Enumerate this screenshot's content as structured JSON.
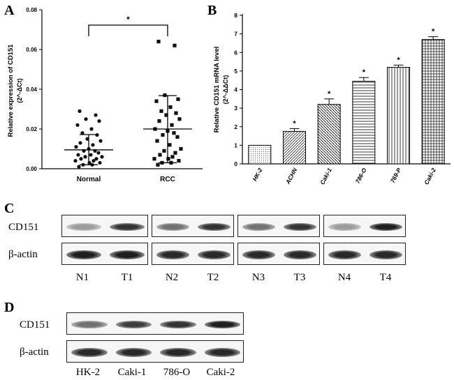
{
  "panel_a": {
    "letter": "A",
    "significance": "*",
    "chart_data": {
      "type": "scatter",
      "ylabel": "Relative expression of CD151",
      "ylabel_formula": "(2^-ΔCt)",
      "categories": [
        "Normal",
        "RCC"
      ],
      "ylim": [
        0,
        0.08
      ],
      "yticks": [
        "0.00",
        "0.02",
        "0.04",
        "0.06",
        "0.08"
      ],
      "series": [
        {
          "values": [
            0.029,
            0.027,
            0.025,
            0.024,
            0.022,
            0.02,
            0.018,
            0.017,
            0.015,
            0.014,
            0.013,
            0.012,
            0.011,
            0.01,
            0.009,
            0.009,
            0.008,
            0.007,
            0.007,
            0.006,
            0.006,
            0.005,
            0.005,
            0.004,
            0.004,
            0.003,
            0.003,
            0.002,
            0.002,
            0.001
          ],
          "mean": 0.0095,
          "sd_upper": 0.0172,
          "sd_lower": 0.002
        },
        {
          "values": [
            0.064,
            0.062,
            0.037,
            0.035,
            0.034,
            0.031,
            0.029,
            0.028,
            0.027,
            0.025,
            0.024,
            0.022,
            0.02,
            0.019,
            0.018,
            0.017,
            0.016,
            0.014,
            0.012,
            0.01,
            0.009,
            0.008,
            0.007,
            0.006,
            0.005,
            0.005,
            0.004,
            0.003,
            0.003,
            0.002
          ],
          "mean": 0.02,
          "sd_upper": 0.0368,
          "sd_lower": 0.003
        }
      ]
    }
  },
  "panel_b": {
    "letter": "B",
    "chart_data": {
      "type": "bar",
      "ylabel": "Relative CD151 mRNA level",
      "ylabel_formula": "(2^-ΔΔCt)",
      "categories": [
        "HK-2",
        "ACHN",
        "Caki-1",
        "786-O",
        "769-P",
        "Caki-2"
      ],
      "values": [
        1.0,
        1.75,
        3.2,
        4.45,
        5.2,
        6.7
      ],
      "errors": [
        0,
        0.15,
        0.3,
        0.2,
        0.12,
        0.15
      ],
      "significance": [
        "",
        "*",
        "*",
        "*",
        "*",
        "*"
      ],
      "ylim": [
        0,
        8
      ],
      "yticks": [
        "0",
        "1",
        "2",
        "3",
        "4",
        "5",
        "6",
        "7",
        "8"
      ]
    }
  },
  "panel_c": {
    "letter": "C",
    "rows": [
      "CD151",
      "β-actin"
    ],
    "lanes": [
      "N1",
      "T1",
      "N2",
      "T2",
      "N3",
      "T3",
      "N4",
      "T4"
    ],
    "cd151_intensity": [
      0.35,
      0.85,
      0.55,
      0.85,
      0.55,
      0.85,
      0.35,
      0.95
    ],
    "actin_intensity": [
      0.95,
      0.95,
      0.9,
      0.9,
      0.9,
      0.9,
      0.9,
      0.9
    ]
  },
  "panel_d": {
    "letter": "D",
    "rows": [
      "CD151",
      "β-actin"
    ],
    "lanes": [
      "HK-2",
      "Caki-1",
      "786-O",
      "Caki-2"
    ],
    "cd151_intensity": [
      0.55,
      0.8,
      0.85,
      0.95
    ],
    "actin_intensity": [
      0.9,
      0.9,
      0.9,
      0.9
    ]
  }
}
